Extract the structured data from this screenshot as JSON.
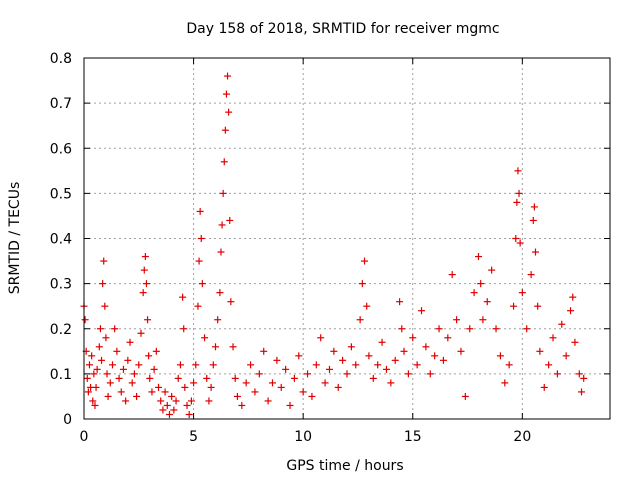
{
  "chart_data": {
    "type": "scatter",
    "title": "Day 158 of 2018, SRMTID for receiver mgmc",
    "xlabel": "GPS time / hours",
    "ylabel": "SRMTID / TECUs",
    "xlim": [
      0,
      24
    ],
    "ylim": [
      0,
      0.8
    ],
    "xticks": [
      0,
      5,
      10,
      15,
      20
    ],
    "xtick_labels": [
      "0",
      "5",
      "10",
      "15",
      "20"
    ],
    "yticks": [
      0,
      0.1,
      0.2,
      0.3,
      0.4,
      0.5,
      0.6,
      0.7,
      0.8
    ],
    "ytick_labels": [
      "0",
      "0.1",
      "0.2",
      "0.3",
      "0.4",
      "0.5",
      "0.6",
      "0.7",
      "0.8"
    ],
    "grid": true,
    "marker": "+",
    "color": "#e00000",
    "series": [
      {
        "name": "SRMTID",
        "points": [
          [
            0.0,
            0.25
          ],
          [
            0.05,
            0.22
          ],
          [
            0.1,
            0.15
          ],
          [
            0.15,
            0.09
          ],
          [
            0.2,
            0.06
          ],
          [
            0.25,
            0.12
          ],
          [
            0.3,
            0.07
          ],
          [
            0.35,
            0.14
          ],
          [
            0.4,
            0.04
          ],
          [
            0.45,
            0.1
          ],
          [
            0.5,
            0.03
          ],
          [
            0.55,
            0.07
          ],
          [
            0.6,
            0.11
          ],
          [
            0.7,
            0.16
          ],
          [
            0.75,
            0.2
          ],
          [
            0.8,
            0.13
          ],
          [
            0.85,
            0.3
          ],
          [
            0.9,
            0.35
          ],
          [
            0.95,
            0.25
          ],
          [
            1.0,
            0.18
          ],
          [
            1.05,
            0.1
          ],
          [
            1.1,
            0.05
          ],
          [
            1.2,
            0.08
          ],
          [
            1.3,
            0.12
          ],
          [
            1.4,
            0.2
          ],
          [
            1.5,
            0.15
          ],
          [
            1.6,
            0.09
          ],
          [
            1.7,
            0.06
          ],
          [
            1.8,
            0.11
          ],
          [
            1.9,
            0.04
          ],
          [
            2.0,
            0.13
          ],
          [
            2.1,
            0.17
          ],
          [
            2.2,
            0.08
          ],
          [
            2.3,
            0.1
          ],
          [
            2.4,
            0.05
          ],
          [
            2.5,
            0.12
          ],
          [
            2.6,
            0.19
          ],
          [
            2.7,
            0.28
          ],
          [
            2.75,
            0.33
          ],
          [
            2.8,
            0.36
          ],
          [
            2.85,
            0.3
          ],
          [
            2.9,
            0.22
          ],
          [
            2.95,
            0.14
          ],
          [
            3.0,
            0.09
          ],
          [
            3.1,
            0.06
          ],
          [
            3.2,
            0.11
          ],
          [
            3.3,
            0.15
          ],
          [
            3.4,
            0.07
          ],
          [
            3.5,
            0.04
          ],
          [
            3.6,
            0.02
          ],
          [
            3.7,
            0.06
          ],
          [
            3.8,
            0.03
          ],
          [
            3.9,
            0.01
          ],
          [
            4.0,
            0.05
          ],
          [
            4.1,
            0.02
          ],
          [
            4.2,
            0.04
          ],
          [
            4.3,
            0.09
          ],
          [
            4.4,
            0.12
          ],
          [
            4.5,
            0.27
          ],
          [
            4.55,
            0.2
          ],
          [
            4.6,
            0.07
          ],
          [
            4.7,
            0.03
          ],
          [
            4.8,
            0.01
          ],
          [
            4.9,
            0.04
          ],
          [
            5.0,
            0.08
          ],
          [
            5.1,
            0.12
          ],
          [
            5.2,
            0.25
          ],
          [
            5.25,
            0.35
          ],
          [
            5.3,
            0.46
          ],
          [
            5.35,
            0.4
          ],
          [
            5.4,
            0.3
          ],
          [
            5.5,
            0.18
          ],
          [
            5.6,
            0.09
          ],
          [
            5.7,
            0.04
          ],
          [
            5.8,
            0.07
          ],
          [
            5.9,
            0.12
          ],
          [
            6.0,
            0.16
          ],
          [
            6.1,
            0.22
          ],
          [
            6.2,
            0.28
          ],
          [
            6.25,
            0.37
          ],
          [
            6.3,
            0.43
          ],
          [
            6.35,
            0.5
          ],
          [
            6.4,
            0.57
          ],
          [
            6.45,
            0.64
          ],
          [
            6.5,
            0.72
          ],
          [
            6.55,
            0.76
          ],
          [
            6.6,
            0.68
          ],
          [
            6.65,
            0.44
          ],
          [
            6.7,
            0.26
          ],
          [
            6.8,
            0.16
          ],
          [
            6.9,
            0.09
          ],
          [
            7.0,
            0.05
          ],
          [
            7.2,
            0.03
          ],
          [
            7.4,
            0.08
          ],
          [
            7.6,
            0.12
          ],
          [
            7.8,
            0.06
          ],
          [
            8.0,
            0.1
          ],
          [
            8.2,
            0.15
          ],
          [
            8.4,
            0.04
          ],
          [
            8.6,
            0.08
          ],
          [
            8.8,
            0.13
          ],
          [
            9.0,
            0.07
          ],
          [
            9.2,
            0.11
          ],
          [
            9.4,
            0.03
          ],
          [
            9.6,
            0.09
          ],
          [
            9.8,
            0.14
          ],
          [
            10.0,
            0.06
          ],
          [
            10.2,
            0.1
          ],
          [
            10.4,
            0.05
          ],
          [
            10.6,
            0.12
          ],
          [
            10.8,
            0.18
          ],
          [
            11.0,
            0.08
          ],
          [
            11.2,
            0.11
          ],
          [
            11.4,
            0.15
          ],
          [
            11.6,
            0.07
          ],
          [
            11.8,
            0.13
          ],
          [
            12.0,
            0.1
          ],
          [
            12.2,
            0.16
          ],
          [
            12.4,
            0.12
          ],
          [
            12.6,
            0.22
          ],
          [
            12.7,
            0.3
          ],
          [
            12.8,
            0.35
          ],
          [
            12.9,
            0.25
          ],
          [
            13.0,
            0.14
          ],
          [
            13.2,
            0.09
          ],
          [
            13.4,
            0.12
          ],
          [
            13.6,
            0.17
          ],
          [
            13.8,
            0.11
          ],
          [
            14.0,
            0.08
          ],
          [
            14.2,
            0.13
          ],
          [
            14.4,
            0.26
          ],
          [
            14.5,
            0.2
          ],
          [
            14.6,
            0.15
          ],
          [
            14.8,
            0.1
          ],
          [
            15.0,
            0.18
          ],
          [
            15.2,
            0.12
          ],
          [
            15.4,
            0.24
          ],
          [
            15.6,
            0.16
          ],
          [
            15.8,
            0.1
          ],
          [
            16.0,
            0.14
          ],
          [
            16.2,
            0.2
          ],
          [
            16.4,
            0.13
          ],
          [
            16.6,
            0.18
          ],
          [
            16.8,
            0.32
          ],
          [
            17.0,
            0.22
          ],
          [
            17.2,
            0.15
          ],
          [
            17.4,
            0.05
          ],
          [
            17.6,
            0.2
          ],
          [
            17.8,
            0.28
          ],
          [
            18.0,
            0.36
          ],
          [
            18.1,
            0.3
          ],
          [
            18.2,
            0.22
          ],
          [
            18.4,
            0.26
          ],
          [
            18.6,
            0.33
          ],
          [
            18.8,
            0.2
          ],
          [
            19.0,
            0.14
          ],
          [
            19.2,
            0.08
          ],
          [
            19.4,
            0.12
          ],
          [
            19.6,
            0.25
          ],
          [
            19.7,
            0.4
          ],
          [
            19.75,
            0.48
          ],
          [
            19.8,
            0.55
          ],
          [
            19.85,
            0.5
          ],
          [
            19.9,
            0.39
          ],
          [
            20.0,
            0.28
          ],
          [
            20.2,
            0.2
          ],
          [
            20.4,
            0.32
          ],
          [
            20.5,
            0.44
          ],
          [
            20.55,
            0.47
          ],
          [
            20.6,
            0.37
          ],
          [
            20.7,
            0.25
          ],
          [
            20.8,
            0.15
          ],
          [
            21.0,
            0.07
          ],
          [
            21.2,
            0.12
          ],
          [
            21.4,
            0.18
          ],
          [
            21.6,
            0.1
          ],
          [
            21.8,
            0.21
          ],
          [
            22.0,
            0.14
          ],
          [
            22.2,
            0.24
          ],
          [
            22.3,
            0.27
          ],
          [
            22.4,
            0.17
          ],
          [
            22.6,
            0.1
          ],
          [
            22.7,
            0.06
          ],
          [
            22.8,
            0.09
          ]
        ]
      }
    ]
  }
}
